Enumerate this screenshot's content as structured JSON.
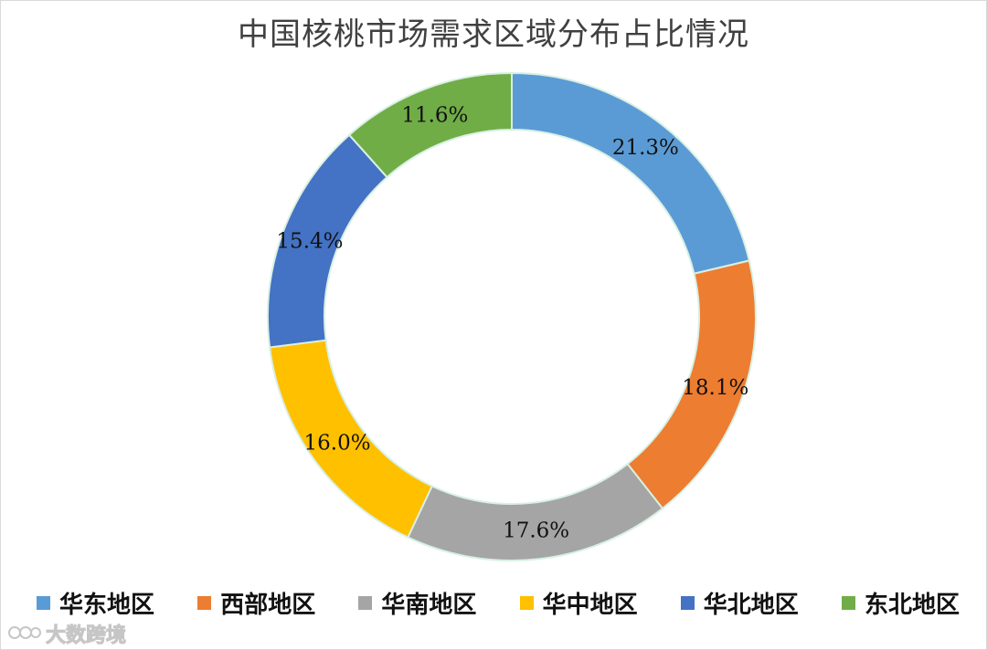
{
  "chart_data": {
    "type": "pie",
    "title": "中国核桃市场需求区域分布占比情况",
    "categories": [
      "华东地区",
      "西部地区",
      "华南地区",
      "华中地区",
      "华北地区",
      "东北地区"
    ],
    "values": [
      21.3,
      18.1,
      17.6,
      16.0,
      15.4,
      11.6
    ],
    "labels": [
      "21.3%",
      "18.1%",
      "17.6%",
      "16.0%",
      "15.4%",
      "11.6%"
    ],
    "colors": [
      "#5b9bd5",
      "#ed7d31",
      "#a5a5a5",
      "#ffc000",
      "#4472c4",
      "#70ad47"
    ],
    "donut": true,
    "legend_position": "bottom"
  },
  "watermark": {
    "text": "大数跨境",
    "icon": "logo-icon"
  }
}
